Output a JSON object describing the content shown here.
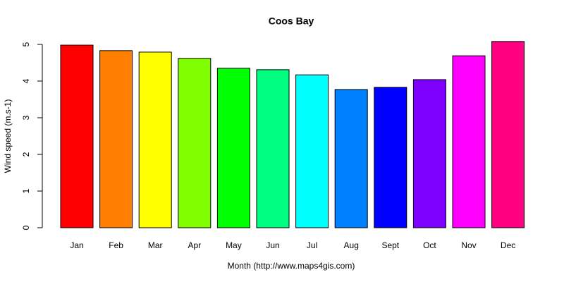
{
  "chart_data": {
    "type": "bar",
    "title": "Coos Bay",
    "x_label": "Month (http://www.maps4gis.com)",
    "y_label": "Wind speed (m.s-1)",
    "categories": [
      "Jan",
      "Feb",
      "Mar",
      "Apr",
      "May",
      "Jun",
      "Jul",
      "Aug",
      "Sept",
      "Oct",
      "Nov",
      "Dec"
    ],
    "values": [
      4.98,
      4.83,
      4.79,
      4.62,
      4.35,
      4.31,
      4.17,
      3.77,
      3.83,
      4.04,
      4.69,
      5.08
    ],
    "colors": [
      "#ff0000",
      "#ff8000",
      "#ffff00",
      "#80ff00",
      "#00ff00",
      "#00ff80",
      "#00ffff",
      "#0080ff",
      "#0000ff",
      "#8000ff",
      "#ff00ff",
      "#ff0080"
    ],
    "ylim": [
      0,
      5
    ],
    "yticks": [
      0,
      1,
      2,
      3,
      4,
      5
    ]
  }
}
